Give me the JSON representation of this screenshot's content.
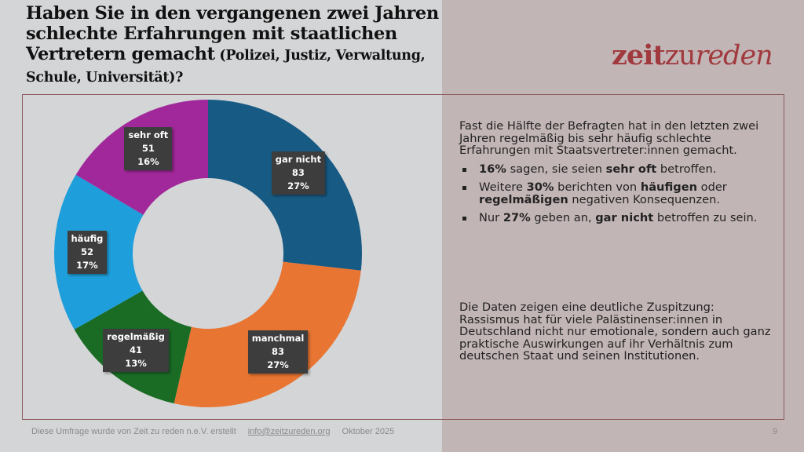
{
  "slide": {
    "title_main": "Haben Sie in den vergangenen zwei Jahren schlechte Erfahrungen mit staatlichen Vertretern gemacht",
    "title_sub": " (Polizei, Justiz, Verwaltung, Schule, Universität)?",
    "logo": {
      "part1": "zeit",
      "part2": "zu",
      "part3": "reden",
      "color": "#a03a3e"
    },
    "intro": "Fast die Hälfte der Befragten hat in den letzten zwei Jahren regelmäßig bis sehr häufig schlechte Erfahrungen mit Staatsvertreter:innen gemacht.",
    "bullets": [
      {
        "b1": "16%",
        "t1": " sagen, sie seien ",
        "b2": "sehr oft",
        "t2": " betroffen.",
        "b3": "",
        "t3": ""
      },
      {
        "b1": "",
        "t1": "Weitere ",
        "b2": "30%",
        "t2": " berichten von ",
        "b3": "häufigen",
        "t3": " oder ",
        "b4": "regelmäßigen",
        "t4": " negativen Konsequenzen."
      },
      {
        "b1": "",
        "t1": "Nur ",
        "b2": "27%",
        "t2": " geben an, ",
        "b3": "gar nicht",
        "t3": " betroffen zu sein."
      }
    ],
    "conclusion": "Die Daten zeigen eine deutliche Zuspitzung: Rassismus hat für viele Palästinenser:innen in Deutschland nicht nur emotionale, sondern auch ganz praktische Auswirkungen auf ihr Verhältnis zum deutschen Staat und seinen Institutionen.",
    "footer": {
      "credit": "Diese Umfrage wurde von Zeit zu reden n.e.V. erstellt",
      "email": "info@zeitzureden.org",
      "date": "Oktober 2025",
      "page": "9"
    }
  },
  "chart_data": {
    "type": "pie",
    "subtype": "donut",
    "title": "Haben Sie in den vergangenen zwei Jahren schlechte Erfahrungen mit staatlichen Vertretern gemacht (Polizei, Justiz, Verwaltung, Schule, Universität)?",
    "categories": [
      "gar nicht",
      "manchmal",
      "regelmäßig",
      "häufig",
      "sehr oft"
    ],
    "values": [
      83,
      83,
      41,
      52,
      51
    ],
    "percent_labels": [
      "27%",
      "27%",
      "13%",
      "17%",
      "16%"
    ],
    "colors": [
      "#175a83",
      "#e97532",
      "#1a6c25",
      "#1e9fdb",
      "#a1289a"
    ],
    "start": "12 o'clock, clockwise",
    "legend": "none (data labels in boxes)"
  }
}
